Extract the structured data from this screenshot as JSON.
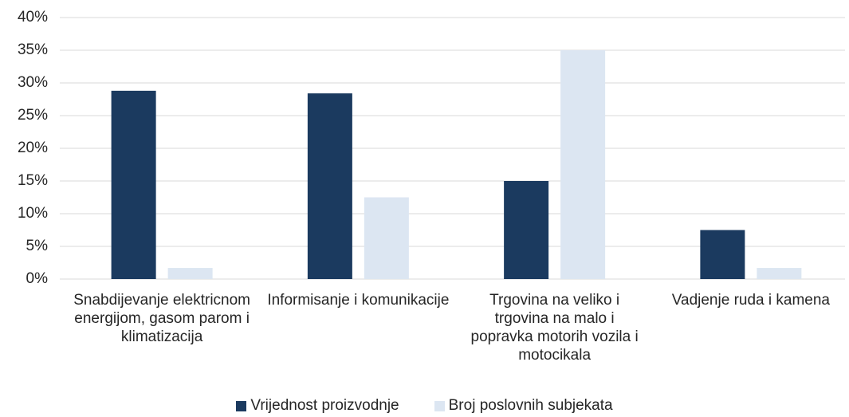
{
  "chart_data": {
    "type": "bar",
    "categories": [
      "Snabdijevanje elektricnom energijom, gasom parom i klimatizacija",
      "Informisanje i komunikacije",
      "Trgovina na veliko i trgovina na malo i popravka motorih vozila i motocikala",
      "Vadjenje ruda i kamena"
    ],
    "series": [
      {
        "name": "Vrijednost proizvodnje",
        "color": "#1b3a5f",
        "values": [
          28.8,
          28.4,
          15.0,
          7.5
        ]
      },
      {
        "name": "Broj poslovnih subjekata",
        "color": "#dce6f2",
        "values": [
          1.7,
          12.5,
          35.0,
          1.7
        ]
      }
    ],
    "ylim": [
      0,
      40
    ],
    "yticks": [
      {
        "value": 0,
        "label": "0%"
      },
      {
        "value": 5,
        "label": "5%"
      },
      {
        "value": 10,
        "label": "10%"
      },
      {
        "value": 15,
        "label": "15%"
      },
      {
        "value": 20,
        "label": "20%"
      },
      {
        "value": 25,
        "label": "25%"
      },
      {
        "value": 30,
        "label": "30%"
      },
      {
        "value": 35,
        "label": "35%"
      },
      {
        "value": 40,
        "label": "40%"
      }
    ],
    "grid": true,
    "legend": "bottom"
  }
}
